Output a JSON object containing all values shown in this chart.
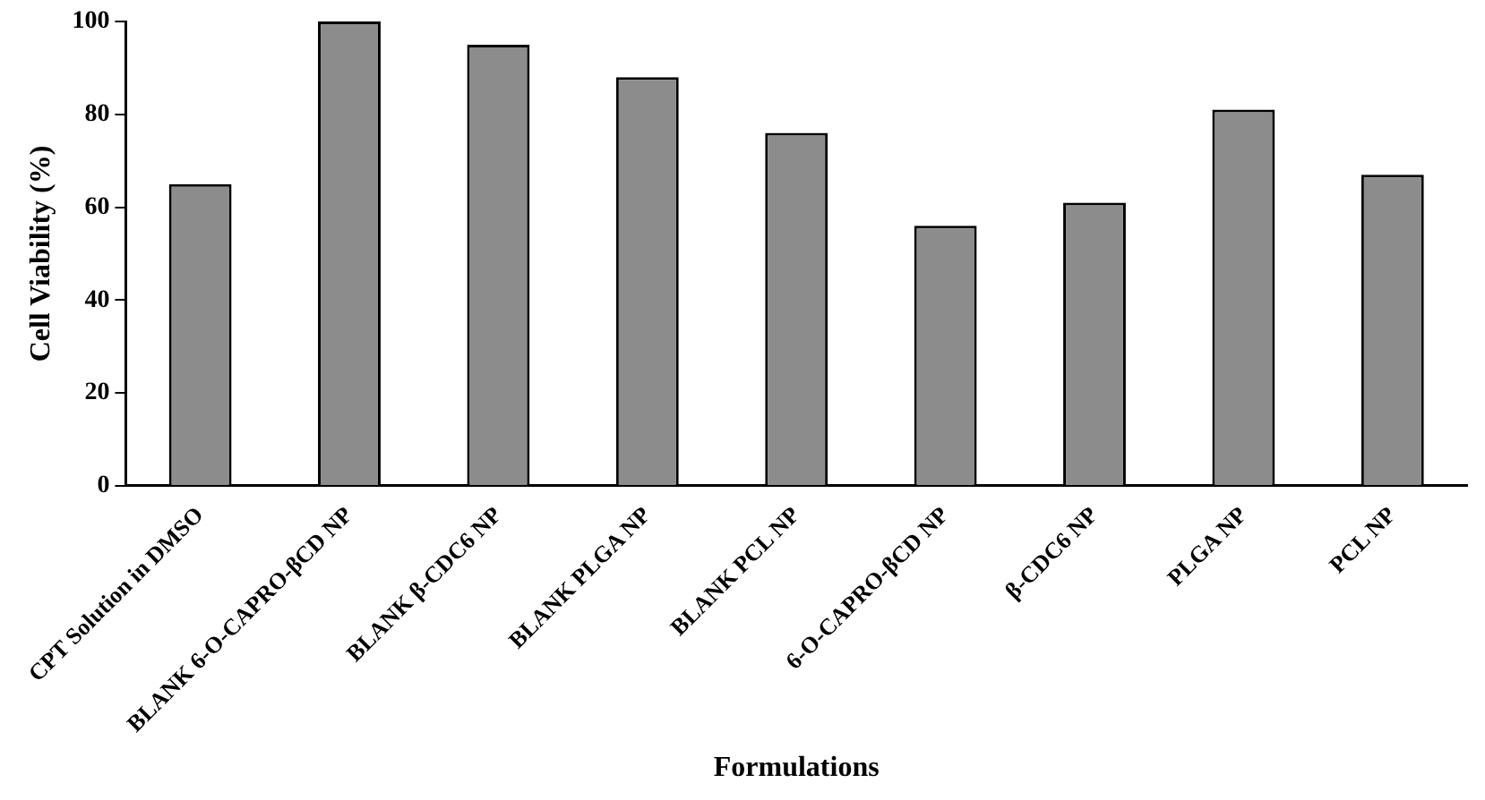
{
  "chart_data": {
    "type": "bar",
    "xlabel": "Formulations",
    "ylabel": "Cell Viability (%)",
    "categories": [
      "CPT Solution in DMSO",
      "BLANK 6-O-CAPRO-βCD NP",
      "BLANK β-CDC6 NP",
      "BLANK PLGA NP",
      "BLANK PCL NP",
      "6-O-CAPRO-βCD NP",
      "β-CDC6 NP",
      "PLGA NP",
      "PCL NP"
    ],
    "values": [
      65,
      100,
      95,
      88,
      76,
      56,
      61,
      81,
      67
    ],
    "color": "#8c8c8c",
    "ylim": [
      0,
      100
    ],
    "yticks": [
      0,
      20,
      40,
      60,
      80,
      100
    ],
    "grid": false,
    "legend": false
  }
}
